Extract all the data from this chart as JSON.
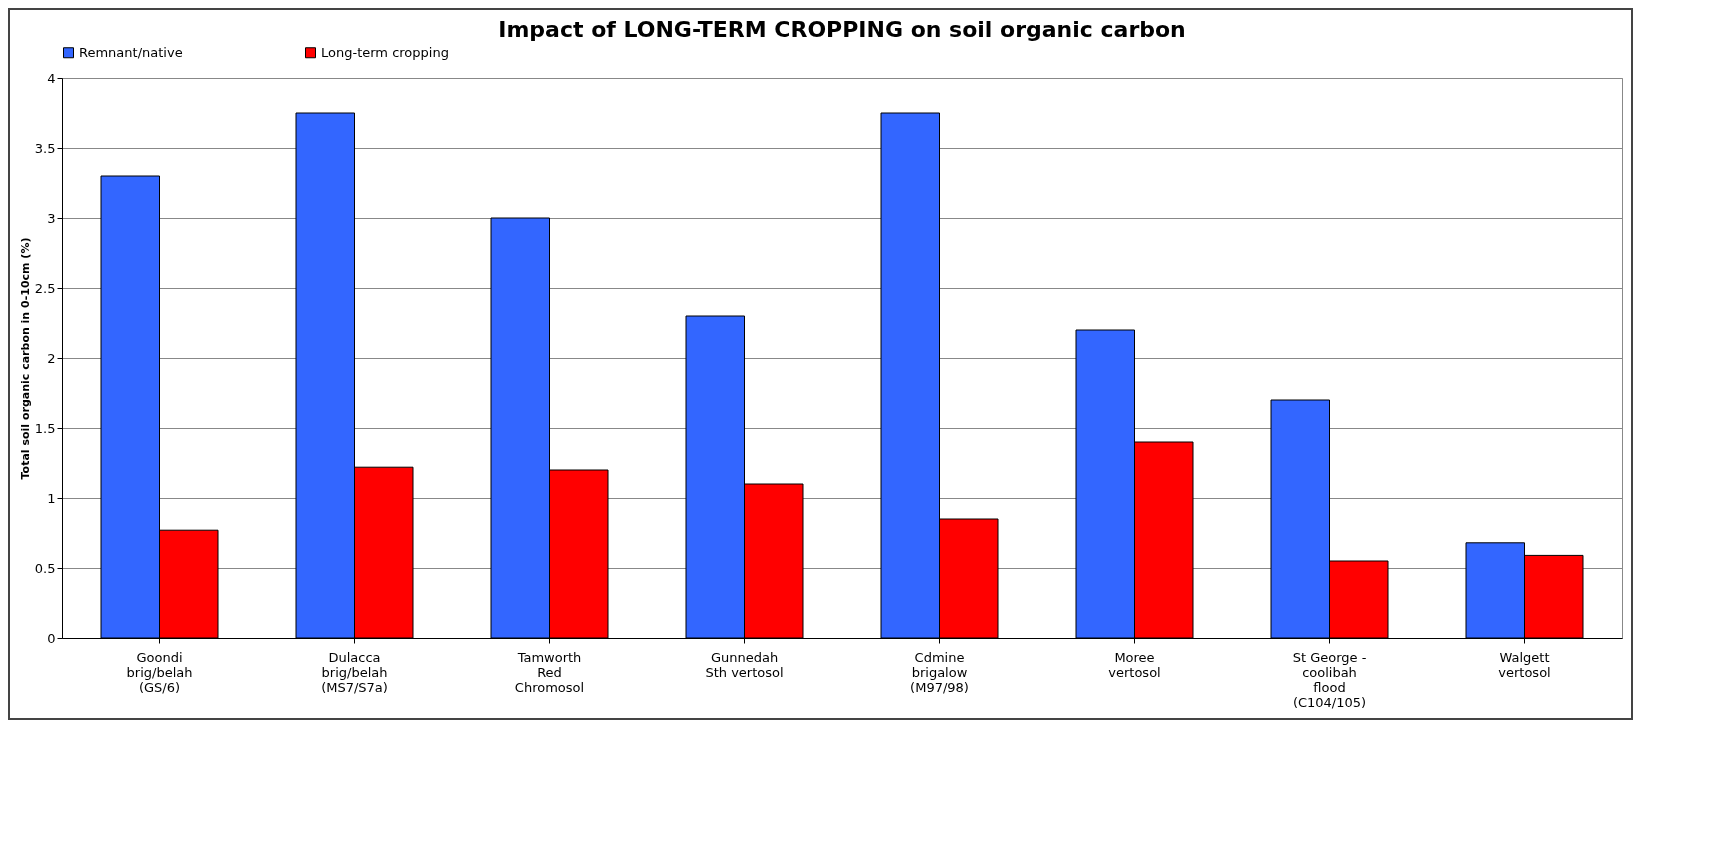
{
  "chart_data": {
    "type": "bar",
    "title": "Impact of LONG-TERM CROPPING on soil organic carbon",
    "ylabel": "Total soil organic carbon in 0-10cm (%)",
    "categories": [
      "Goondi\nbrig/belah\n(GS/6)",
      "Dulacca\nbrig/belah\n(MS7/S7a)",
      "Tamworth\nRed\nChromosol",
      "Gunnedah\nSth vertosol",
      "Cdmine\nbrigalow\n(M97/98)",
      "Moree\nvertosol",
      "St George -\ncoolibah\nflood\n(C104/105)",
      "Walgett\nvertosol"
    ],
    "series": [
      {
        "name": "Remnant/native",
        "color": "#3366ff",
        "values": [
          3.3,
          3.75,
          3.0,
          2.3,
          3.75,
          2.2,
          1.7,
          0.68
        ]
      },
      {
        "name": "Long-term cropping",
        "color": "#ff0000",
        "values": [
          0.77,
          1.22,
          1.2,
          1.1,
          0.85,
          1.4,
          0.55,
          0.59
        ]
      }
    ],
    "ylim": [
      0,
      4
    ],
    "yticks": [
      0,
      0.5,
      1,
      1.5,
      2,
      2.5,
      3,
      3.5,
      4
    ],
    "grid": "y",
    "legend": "top"
  }
}
